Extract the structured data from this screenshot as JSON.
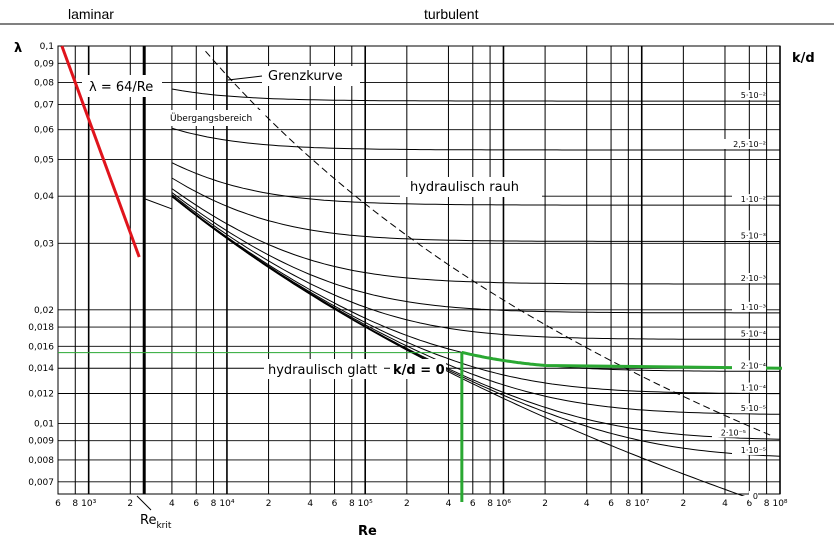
{
  "chart_data": {
    "type": "line",
    "title": "",
    "xlabel": "Re",
    "ylabel": "λ",
    "right_label": "k/d",
    "x_scale": "log",
    "y_scale": "log",
    "xlim": [
      600,
      100000000
    ],
    "ylim": [
      0.0065,
      0.1
    ],
    "grid": true,
    "regions": {
      "laminar": "laminar",
      "turbulent": "turbulent"
    },
    "x_ticks": [
      {
        "v": 600,
        "t": "6"
      },
      {
        "v": 800,
        "t": "8"
      },
      {
        "v": 1000,
        "t": "10³"
      },
      {
        "v": 2000,
        "t": "2"
      },
      {
        "v": 4000,
        "t": "4"
      },
      {
        "v": 6000,
        "t": "6"
      },
      {
        "v": 8000,
        "t": "8"
      },
      {
        "v": 10000,
        "t": "10⁴"
      },
      {
        "v": 20000,
        "t": "2"
      },
      {
        "v": 40000,
        "t": "4"
      },
      {
        "v": 60000,
        "t": "6"
      },
      {
        "v": 80000,
        "t": "8"
      },
      {
        "v": 100000,
        "t": "10⁵"
      },
      {
        "v": 200000,
        "t": "2"
      },
      {
        "v": 400000,
        "t": "4"
      },
      {
        "v": 600000,
        "t": "6"
      },
      {
        "v": 800000,
        "t": "8"
      },
      {
        "v": 1000000,
        "t": "10⁶"
      },
      {
        "v": 2000000,
        "t": "2"
      },
      {
        "v": 4000000,
        "t": "4"
      },
      {
        "v": 6000000,
        "t": "6"
      },
      {
        "v": 8000000,
        "t": "8"
      },
      {
        "v": 10000000,
        "t": "10⁷"
      },
      {
        "v": 20000000,
        "t": "2"
      },
      {
        "v": 40000000,
        "t": "4"
      },
      {
        "v": 60000000,
        "t": "6"
      },
      {
        "v": 80000000,
        "t": "8"
      },
      {
        "v": 100000000,
        "t": "10⁸"
      }
    ],
    "y_ticks": [
      {
        "v": 0.1,
        "t": "0,1"
      },
      {
        "v": 0.09,
        "t": "0,09"
      },
      {
        "v": 0.08,
        "t": "0,08"
      },
      {
        "v": 0.07,
        "t": "0,07"
      },
      {
        "v": 0.06,
        "t": "0,06"
      },
      {
        "v": 0.05,
        "t": "0,05"
      },
      {
        "v": 0.04,
        "t": "0,04"
      },
      {
        "v": 0.03,
        "t": "0,03"
      },
      {
        "v": 0.02,
        "t": "0,02"
      },
      {
        "v": 0.018,
        "t": "0,018"
      },
      {
        "v": 0.016,
        "t": "0,016"
      },
      {
        "v": 0.014,
        "t": "0,014"
      },
      {
        "v": 0.012,
        "t": "0,012"
      },
      {
        "v": 0.01,
        "t": "0,01"
      },
      {
        "v": 0.009,
        "t": "0,009"
      },
      {
        "v": 0.008,
        "t": "0,008"
      },
      {
        "v": 0.007,
        "t": "0,007"
      }
    ],
    "roughness_curves": [
      {
        "label": "5·10⁻²",
        "kd": 0.05
      },
      {
        "label": "2,5·10⁻²",
        "kd": 0.025
      },
      {
        "label": "1·10⁻²",
        "kd": 0.01
      },
      {
        "label": "5·10⁻³",
        "kd": 0.005
      },
      {
        "label": "2·10⁻³",
        "kd": 0.002
      },
      {
        "label": "1·10⁻³",
        "kd": 0.001
      },
      {
        "label": "5·10⁻⁴",
        "kd": 0.0005
      },
      {
        "label": "2·10⁻⁴",
        "kd": 0.0002
      },
      {
        "label": "1·10⁻⁴",
        "kd": 0.0001
      },
      {
        "label": "5·10⁻⁵",
        "kd": 5e-05
      },
      {
        "label": "2·10⁻⁵",
        "kd": 2e-05
      },
      {
        "label": "1·10⁻⁵",
        "kd": 1e-05
      },
      {
        "label": "0",
        "kd": 0
      }
    ],
    "laminar_line": {
      "label": "λ = 64/Re",
      "x": [
        640,
        2320
      ],
      "y": [
        0.1,
        0.0276
      ]
    },
    "critical_reynolds": {
      "label": "Re",
      "sub": "krit",
      "x": 2320
    },
    "boundary_curve": {
      "label": "Grenzkurve"
    },
    "annotations": {
      "transition": "Übergangsbereich",
      "rough": "hydraulisch rauh",
      "smooth": "hydraulisch glatt",
      "smooth_kd": "k/d = 0"
    },
    "highlight": {
      "color": "#2aa832",
      "re": 500000,
      "kd": 0.0002,
      "lambda": 0.014
    },
    "laminar_color": "#e0141c"
  }
}
